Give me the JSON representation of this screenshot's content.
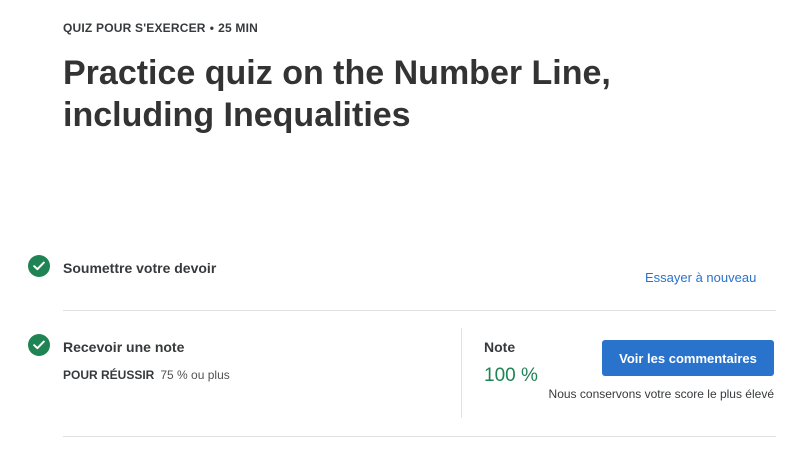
{
  "header": {
    "type_label": "QUIZ POUR S'EXERCER",
    "separator": "•",
    "duration": "25 MIN",
    "title": "Practice quiz on the Number Line, including Inequalities"
  },
  "steps": {
    "submit": {
      "icon": "check-circle-icon",
      "title": "Soumettre votre devoir",
      "retry_label": "Essayer à nouveau"
    },
    "grade": {
      "icon": "check-circle-icon",
      "title": "Recevoir une note",
      "pass_label": "POUR RÉUSSIR",
      "pass_value": "75 % ou plus",
      "grade_label": "Note",
      "grade_value": "100 %",
      "feedback_button": "Voir les commentaires",
      "score_note": "Nous conservons votre score le plus élevé"
    }
  },
  "colors": {
    "success": "#1f8354",
    "accent": "#2a73cc",
    "divider": "#e1e1e1"
  }
}
